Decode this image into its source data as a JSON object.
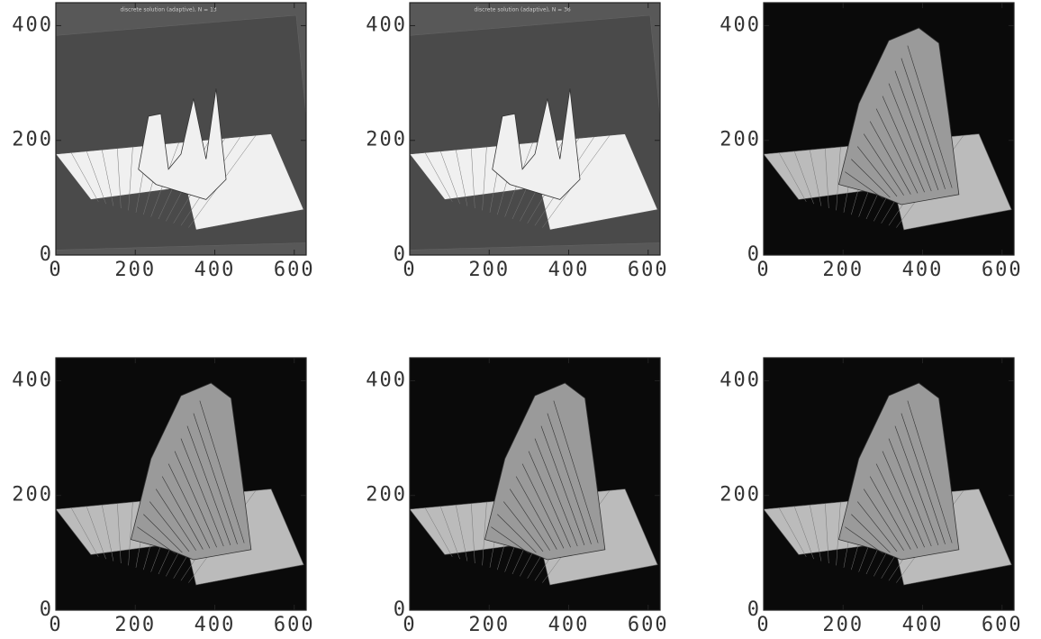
{
  "chart_data": [
    {
      "type": "image",
      "title": "discrete solution (adaptive), N = 13",
      "background": "#585858",
      "surface": "#f0f0f0",
      "xlim": [
        0,
        630
      ],
      "ylim": [
        0,
        440
      ],
      "xticks": [
        0,
        200,
        400,
        600
      ],
      "yticks": [
        0,
        200,
        400
      ]
    },
    {
      "type": "image",
      "title": "discrete solution (adaptive), N = 36",
      "background": "#585858",
      "surface": "#f0f0f0",
      "xlim": [
        0,
        630
      ],
      "ylim": [
        0,
        440
      ],
      "xticks": [
        0,
        200,
        400,
        600
      ],
      "yticks": [
        0,
        200,
        400
      ]
    },
    {
      "type": "image",
      "background": "#0a0a0a",
      "surface": "#9a9a9a",
      "xlim": [
        0,
        630
      ],
      "ylim": [
        0,
        440
      ],
      "xticks": [
        0,
        200,
        400,
        600
      ],
      "yticks": [
        0,
        200,
        400
      ]
    },
    {
      "type": "image",
      "background": "#0a0a0a",
      "surface": "#9a9a9a",
      "xlim": [
        0,
        630
      ],
      "ylim": [
        0,
        440
      ],
      "xticks": [
        0,
        200,
        400,
        600
      ],
      "yticks": [
        0,
        200,
        400
      ]
    },
    {
      "type": "image",
      "background": "#0a0a0a",
      "surface": "#9a9a9a",
      "xlim": [
        0,
        630
      ],
      "ylim": [
        0,
        440
      ],
      "xticks": [
        0,
        200,
        400,
        600
      ],
      "yticks": [
        0,
        200,
        400
      ]
    },
    {
      "type": "image",
      "background": "#0a0a0a",
      "surface": "#9a9a9a",
      "xlim": [
        0,
        630
      ],
      "ylim": [
        0,
        440
      ],
      "xticks": [
        0,
        200,
        400,
        600
      ],
      "yticks": [
        0,
        200,
        400
      ]
    }
  ]
}
